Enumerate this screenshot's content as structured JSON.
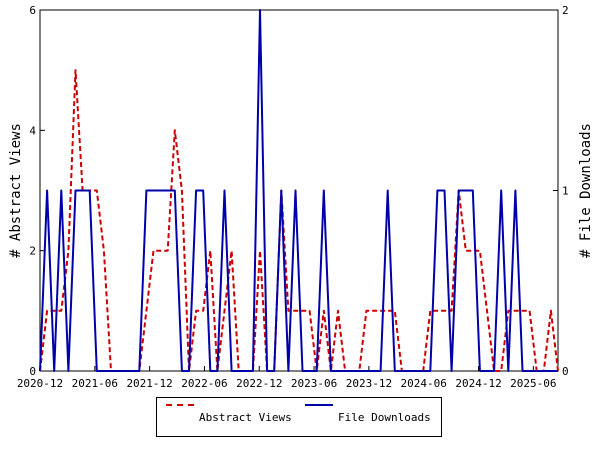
{
  "chart_data": {
    "type": "line",
    "title": "",
    "x_ticks": [
      "2020-12",
      "2021-06",
      "2021-12",
      "2022-06",
      "2022-12",
      "2023-06",
      "2023-12",
      "2024-06",
      "2024-12",
      "2025-06"
    ],
    "y_left": {
      "label": "# Abstract Views",
      "min": 0,
      "max": 6,
      "ticks": [
        "0",
        "2",
        "4",
        "6"
      ]
    },
    "y_right": {
      "label": "# File Downloads",
      "min": 0,
      "max": 2,
      "ticks": [
        "0",
        "1",
        "2"
      ]
    },
    "grid": false,
    "legend_position": "bottom",
    "series": [
      {
        "name": "Abstract Views",
        "axis": "left",
        "color": "#cc0000",
        "style": "dashed",
        "values": [
          0,
          1,
          1,
          1,
          2,
          5,
          3,
          3,
          3,
          2,
          0,
          0,
          0,
          0,
          0,
          1,
          2,
          2,
          2,
          4,
          3,
          0,
          1,
          1,
          2,
          0,
          1,
          2,
          0,
          0,
          0,
          2,
          0,
          0,
          3,
          1,
          1,
          1,
          1,
          0,
          1,
          0,
          1,
          0,
          0,
          0,
          1,
          1,
          1,
          1,
          1,
          0,
          0,
          0,
          0,
          1,
          1,
          1,
          1,
          3,
          2,
          2,
          2,
          1,
          0,
          0,
          1,
          1,
          1,
          1,
          0,
          0,
          1,
          0
        ]
      },
      {
        "name": "File Downloads",
        "axis": "right",
        "color": "#0000aa",
        "style": "solid",
        "values": [
          0,
          1,
          0,
          1,
          0,
          1,
          1,
          1,
          0,
          0,
          0,
          0,
          0,
          0,
          0,
          1,
          1,
          1,
          1,
          1,
          0,
          0,
          1,
          1,
          0,
          0,
          1,
          0,
          0,
          0,
          0,
          2,
          0,
          0,
          1,
          0,
          1,
          0,
          0,
          0,
          1,
          0,
          0,
          0,
          0,
          0,
          0,
          0,
          0,
          1,
          0,
          0,
          0,
          0,
          0,
          0,
          1,
          1,
          0,
          1,
          1,
          1,
          0,
          0,
          0,
          1,
          0,
          1,
          0,
          0,
          0,
          0,
          0,
          0
        ]
      }
    ]
  }
}
